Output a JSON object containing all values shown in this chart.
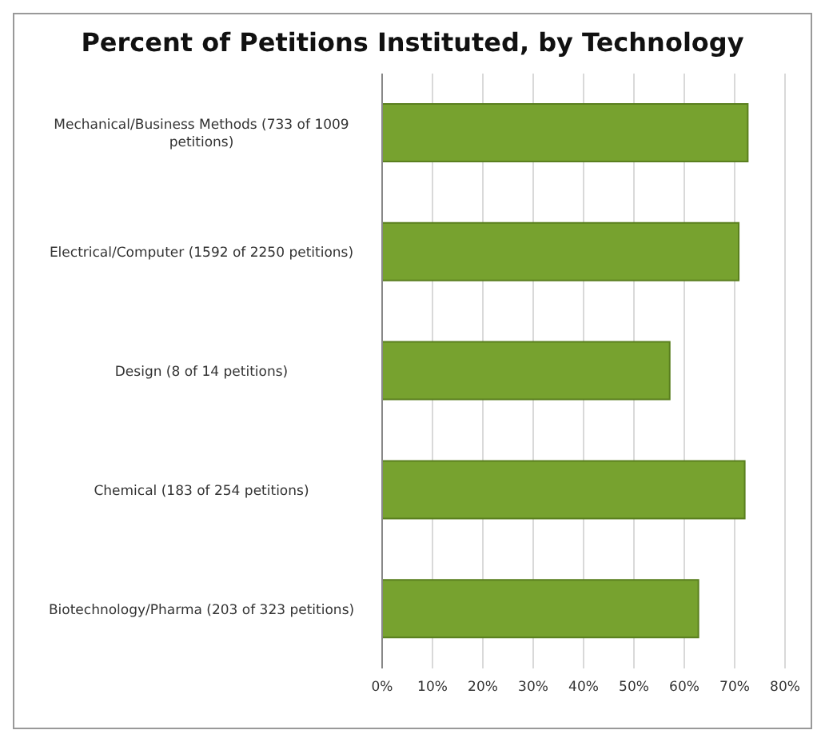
{
  "chart_data": {
    "type": "bar",
    "orientation": "horizontal",
    "title": "Percent of Petitions Instituted, by Technology",
    "categories": [
      "Mechanical/Business Methods (733 of 1009 petitions)",
      "Electrical/Computer (1592 of 2250 petitions)",
      "Design (8 of 14 petitions)",
      "Chemical (183 of 254 petitions)",
      "Biotechnology/Pharma (203 of 323 petitions)"
    ],
    "values": [
      72.6,
      70.8,
      57.1,
      72.0,
      62.8
    ],
    "color": "#77a22f",
    "xlim": [
      0,
      80
    ],
    "xticks": [
      {
        "value": 0,
        "label": "0%"
      },
      {
        "value": 10,
        "label": "10%"
      },
      {
        "value": 20,
        "label": "20%"
      },
      {
        "value": 30,
        "label": "30%"
      },
      {
        "value": 40,
        "label": "40%"
      },
      {
        "value": 50,
        "label": "50%"
      },
      {
        "value": 60,
        "label": "60%"
      },
      {
        "value": 70,
        "label": "70%"
      },
      {
        "value": 80,
        "label": "80%"
      }
    ],
    "grid": "x",
    "legend": false
  }
}
